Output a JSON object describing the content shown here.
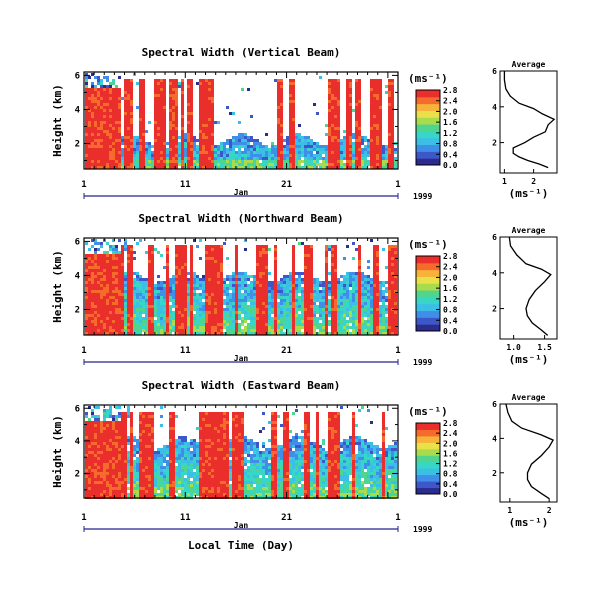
{
  "chart_data": [
    {
      "type": "heatmap",
      "title": "Spectral Width (Vertical Beam)",
      "ylabel": "Height (km)",
      "yticks": [
        "2",
        "4",
        "6"
      ],
      "xticks": [
        "1",
        "11",
        "21",
        "1"
      ],
      "month": "Jan",
      "year": "1999",
      "colorbar": {
        "unit": "(ms⁻¹)",
        "ticks": [
          "0.0",
          "0.4",
          "0.8",
          "1.2",
          "1.6",
          "2.0",
          "2.4",
          "2.8"
        ]
      },
      "average": {
        "title": "Average",
        "xlabel": "(ms⁻¹)",
        "xticks": [
          "1",
          "2"
        ],
        "yticks": [
          "2",
          "4",
          "6"
        ],
        "profile": [
          [
            2.5,
            0.6
          ],
          [
            2.2,
            0.8
          ],
          [
            1.8,
            1.0
          ],
          [
            1.5,
            1.2
          ],
          [
            1.3,
            1.4
          ],
          [
            1.3,
            1.7
          ],
          [
            1.7,
            2.0
          ],
          [
            2.0,
            2.3
          ],
          [
            2.4,
            2.6
          ],
          [
            2.5,
            3.0
          ],
          [
            2.7,
            3.3
          ],
          [
            2.3,
            3.6
          ],
          [
            2.0,
            3.9
          ],
          [
            1.5,
            4.2
          ],
          [
            1.2,
            4.6
          ],
          [
            1.05,
            5.0
          ],
          [
            1.0,
            5.5
          ],
          [
            1.0,
            6.0
          ]
        ]
      }
    },
    {
      "type": "heatmap",
      "title": "Spectral Width (Northward Beam)",
      "ylabel": "Height (km)",
      "yticks": [
        "2",
        "4",
        "6"
      ],
      "xticks": [
        "1",
        "11",
        "21",
        "1"
      ],
      "month": "Jan",
      "year": "1999",
      "colorbar": {
        "unit": "(ms⁻¹)",
        "ticks": [
          "0.0",
          "0.4",
          "0.8",
          "1.2",
          "1.6",
          "2.0",
          "2.4",
          "2.8"
        ]
      },
      "average": {
        "title": "Average",
        "xlabel": "(ms⁻¹)",
        "xticks": [
          "1.0",
          "1.5"
        ],
        "yticks": [
          "2",
          "4",
          "6"
        ],
        "profile": [
          [
            1.55,
            0.5
          ],
          [
            1.45,
            0.8
          ],
          [
            1.3,
            1.2
          ],
          [
            1.22,
            1.6
          ],
          [
            1.2,
            2.0
          ],
          [
            1.25,
            2.5
          ],
          [
            1.35,
            3.0
          ],
          [
            1.5,
            3.5
          ],
          [
            1.6,
            3.9
          ],
          [
            1.45,
            4.2
          ],
          [
            1.2,
            4.5
          ],
          [
            1.05,
            5.0
          ],
          [
            0.95,
            5.5
          ],
          [
            0.93,
            6.0
          ]
        ]
      }
    },
    {
      "type": "heatmap",
      "title": "Spectral Width (Eastward Beam)",
      "ylabel": "Height (km)",
      "xlabel": "Local Time (Day)",
      "yticks": [
        "2",
        "4",
        "6"
      ],
      "xticks": [
        "1",
        "11",
        "21",
        "1"
      ],
      "month": "Jan",
      "year": "1999",
      "colorbar": {
        "unit": "(ms⁻¹)",
        "ticks": [
          "0.0",
          "0.4",
          "0.8",
          "1.2",
          "1.6",
          "2.0",
          "2.4",
          "2.8"
        ]
      },
      "average": {
        "title": "Average",
        "xlabel": "(ms⁻¹)",
        "xticks": [
          "1",
          "2"
        ],
        "yticks": [
          "2",
          "4",
          "6"
        ],
        "profile": [
          [
            2.0,
            0.5
          ],
          [
            1.8,
            0.8
          ],
          [
            1.55,
            1.2
          ],
          [
            1.45,
            1.6
          ],
          [
            1.45,
            2.0
          ],
          [
            1.55,
            2.5
          ],
          [
            1.8,
            3.0
          ],
          [
            2.0,
            3.5
          ],
          [
            2.1,
            3.9
          ],
          [
            1.8,
            4.2
          ],
          [
            1.3,
            4.6
          ],
          [
            1.05,
            5.0
          ],
          [
            0.95,
            5.5
          ],
          [
            0.9,
            6.0
          ]
        ]
      }
    }
  ]
}
